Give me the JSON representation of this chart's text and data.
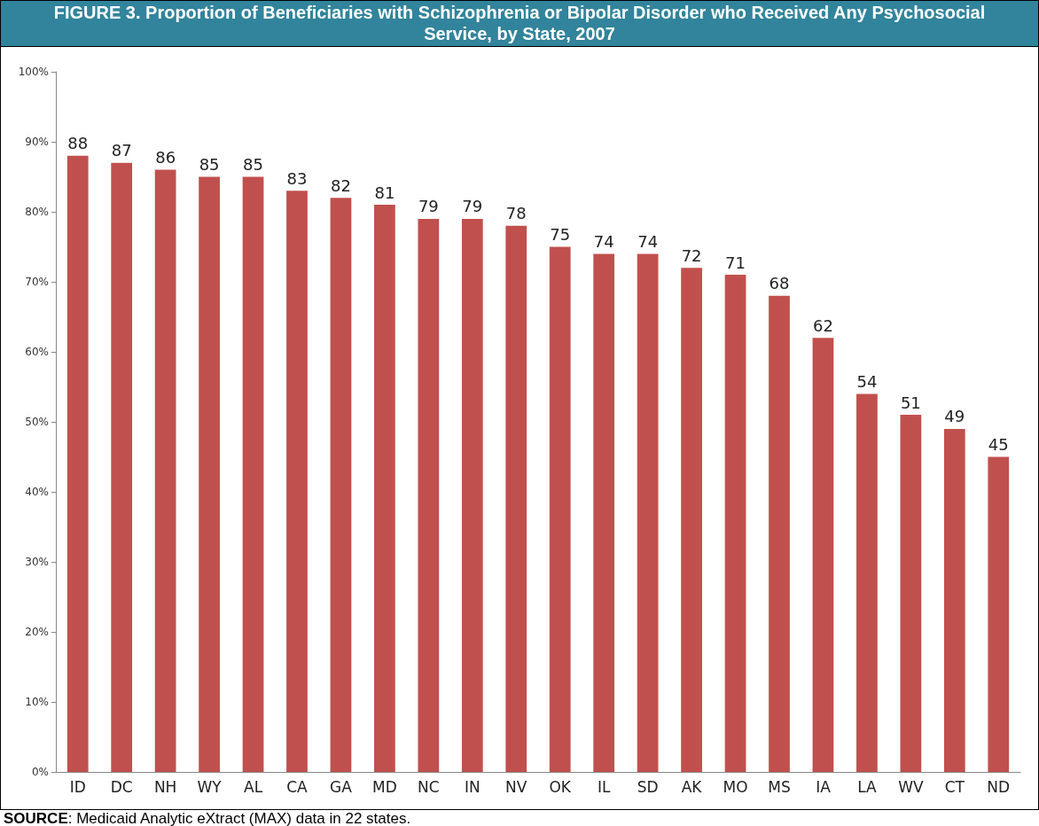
{
  "chart_data": {
    "type": "bar",
    "title": "FIGURE 3. Proportion of Beneficiaries with Schizophrenia or Bipolar Disorder who Received Any Psychosocial Service, by State, 2007",
    "categories": [
      "ID",
      "DC",
      "NH",
      "WY",
      "AL",
      "CA",
      "GA",
      "MD",
      "NC",
      "IN",
      "NV",
      "OK",
      "IL",
      "SD",
      "AK",
      "MO",
      "MS",
      "IA",
      "LA",
      "WV",
      "CT",
      "ND"
    ],
    "values": [
      88,
      87,
      86,
      85,
      85,
      83,
      82,
      81,
      79,
      79,
      78,
      75,
      74,
      74,
      72,
      71,
      68,
      62,
      54,
      51,
      49,
      45
    ],
    "color": "#c0504d",
    "ylim": [
      0,
      100
    ],
    "yticks": [
      {
        "value": 0,
        "label": "0%"
      },
      {
        "value": 10,
        "label": "10%"
      },
      {
        "value": 20,
        "label": "20%"
      },
      {
        "value": 30,
        "label": "30%"
      },
      {
        "value": 40,
        "label": "40%"
      },
      {
        "value": 50,
        "label": "50%"
      },
      {
        "value": 60,
        "label": "60%"
      },
      {
        "value": 70,
        "label": "70%"
      },
      {
        "value": 80,
        "label": "80%"
      },
      {
        "value": 90,
        "label": "90%"
      },
      {
        "value": 100,
        "label": "100%"
      }
    ],
    "grid": false,
    "data_labels": true,
    "annotations": [
      "SOURCE:  Medicaid Analytic eXtract (MAX) data in 22 states."
    ]
  }
}
